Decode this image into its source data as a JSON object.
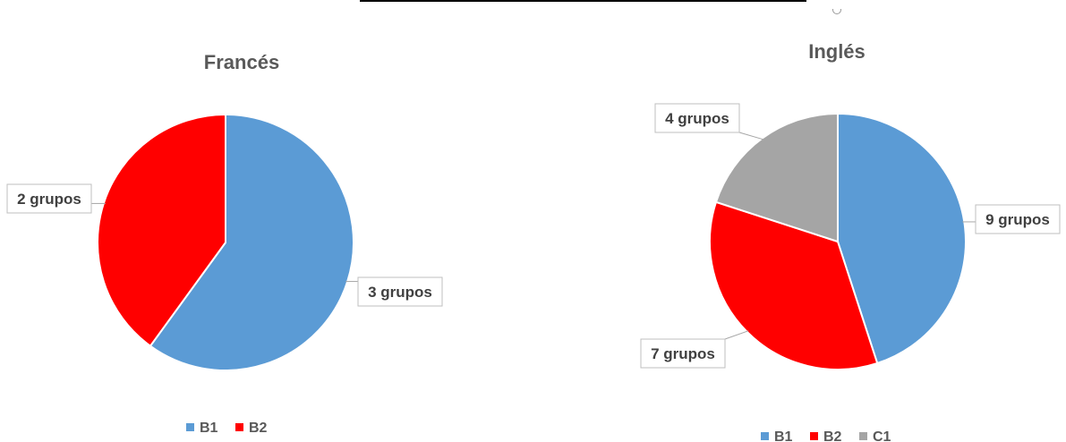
{
  "header": {
    "title_fragment": ""
  },
  "chart_data": [
    {
      "type": "pie",
      "title": "Francés",
      "categories": [
        "B1",
        "B2"
      ],
      "values": [
        3,
        2
      ],
      "data_labels": [
        "3 grupos",
        "2 grupos"
      ],
      "colors": [
        "#5b9bd5",
        "#ff0000"
      ],
      "legend": {
        "position": "bottom",
        "entries": [
          "B1",
          "B2"
        ]
      }
    },
    {
      "type": "pie",
      "title": "Inglés",
      "categories": [
        "B1",
        "B2",
        "C1"
      ],
      "values": [
        9,
        7,
        4
      ],
      "data_labels": [
        "9 grupos",
        "7 grupos",
        "4 grupos"
      ],
      "colors": [
        "#5b9bd5",
        "#ff0000",
        "#a5a5a5"
      ],
      "legend": {
        "position": "bottom",
        "entries": [
          "B1",
          "B2",
          "C1"
        ]
      }
    }
  ]
}
